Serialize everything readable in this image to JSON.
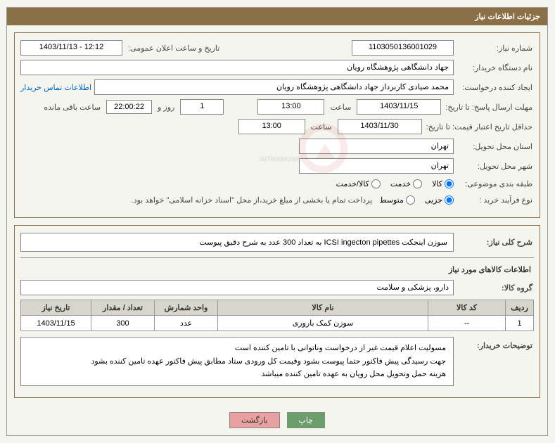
{
  "header": {
    "title": "جزئیات اطلاعات نیاز"
  },
  "section1": {
    "need_no_label": "شماره نیاز:",
    "need_no": "1103050136001029",
    "announce_label": "تاریخ و ساعت اعلان عمومی:",
    "announce_val": "1403/11/13 - 12:12",
    "buyer_org_label": "نام دستگاه خریدار:",
    "buyer_org": "جهاد دانشگاهی پژوهشگاه رویان",
    "requester_label": "ایجاد کننده درخواست:",
    "requester": "محمد صیادی کاربرداز جهاد دانشگاهی پژوهشگاه رویان",
    "contact_link": "اطلاعات تماس خریدار",
    "deadline_label": "مهلت ارسال پاسخ: تا تاریخ:",
    "deadline_date": "1403/11/15",
    "time_label": "ساعت",
    "deadline_time": "13:00",
    "days_val": "1",
    "days_label": "روز و",
    "countdown": "22:00:22",
    "remaining_label": "ساعت باقی مانده",
    "validity_label": "حداقل تاریخ اعتبار قیمت: تا تاریخ:",
    "validity_date": "1403/11/30",
    "validity_time": "13:00",
    "province_label": "استان محل تحویل:",
    "province": "تهران",
    "city_label": "شهر محل تحویل:",
    "city": "تهران",
    "category_label": "طبقه بندی موضوعی:",
    "cat_goods": "کالا",
    "cat_service": "خدمت",
    "cat_both": "کالا/خدمت",
    "process_label": "نوع فرآیند خرید :",
    "proc_partial": "جزیی",
    "proc_medium": "متوسط",
    "process_note": "پرداخت تمام یا بخشی از مبلغ خرید،از محل \"اسناد خزانه اسلامی\" خواهد بود."
  },
  "section2": {
    "desc_label": "شرح کلی نیاز:",
    "desc": "سوزن اینجکت ICSI ingecton pipettes به  تعداد 300 عدد به شرح دقیق پیوست",
    "goods_header": "اطلاعات کالاهای مورد نیاز",
    "group_label": "گروه کالا:",
    "group": "دارو، پزشکی و سلامت",
    "table": {
      "headers": [
        "ردیف",
        "کد کالا",
        "نام کالا",
        "واحد شمارش",
        "تعداد / مقدار",
        "تاریخ نیاز"
      ],
      "col_widths": [
        "40px",
        "110px",
        "",
        "90px",
        "90px",
        "100px"
      ],
      "row": [
        "1",
        "--",
        "سوزن کمک باروری",
        "عدد",
        "300",
        "1403/11/15"
      ]
    },
    "buyer_notes_label": "توضیحات خریدار:",
    "buyer_notes_l1": "مسولیت اعلام قیمت  غیر از درخواست وناتوانی با تامین کننده است",
    "buyer_notes_l2": "جهت رسیدگی پیش فاکتور حتما پیوست بشود وقیمت کل ورودی ستاد مطابق پیش فاکتور عهده تامین کننده بشود",
    "buyer_notes_l3": "هزینه حمل وتحویل محل رویان به عهده تامین کننده میباشد"
  },
  "buttons": {
    "print": "چاپ",
    "back": "بازگشت"
  },
  "watermark_text": "riaTender.net"
}
